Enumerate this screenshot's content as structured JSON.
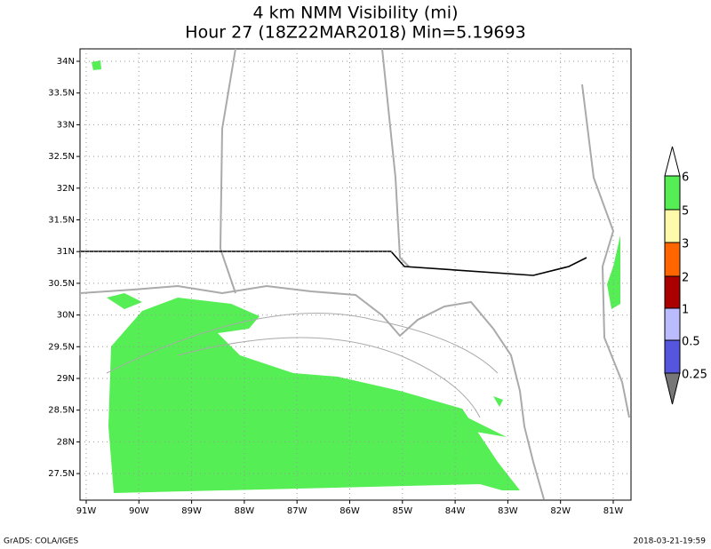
{
  "title": {
    "line1": "4 km NMM Visibility (mi)",
    "line2": "Hour 27 (18Z22MAR2018) Min=5.19693"
  },
  "map": {
    "lat_labels": [
      "34N",
      "33.5N",
      "33N",
      "32.5N",
      "32N",
      "31.5N",
      "31N",
      "30.5N",
      "30N",
      "29.5N",
      "29N",
      "28.5N",
      "28N",
      "27.5N"
    ],
    "lon_labels": [
      "91W",
      "90W",
      "89W",
      "88W",
      "87W",
      "86W",
      "85W",
      "84W",
      "83W",
      "82W",
      "81W"
    ]
  },
  "colorbar": {
    "labels": [
      6,
      5,
      3,
      2,
      1,
      0.5,
      0.25
    ]
  },
  "footer": {
    "left": "GrADS: COLA/IGES",
    "right": "2018-03-21-19:59"
  }
}
